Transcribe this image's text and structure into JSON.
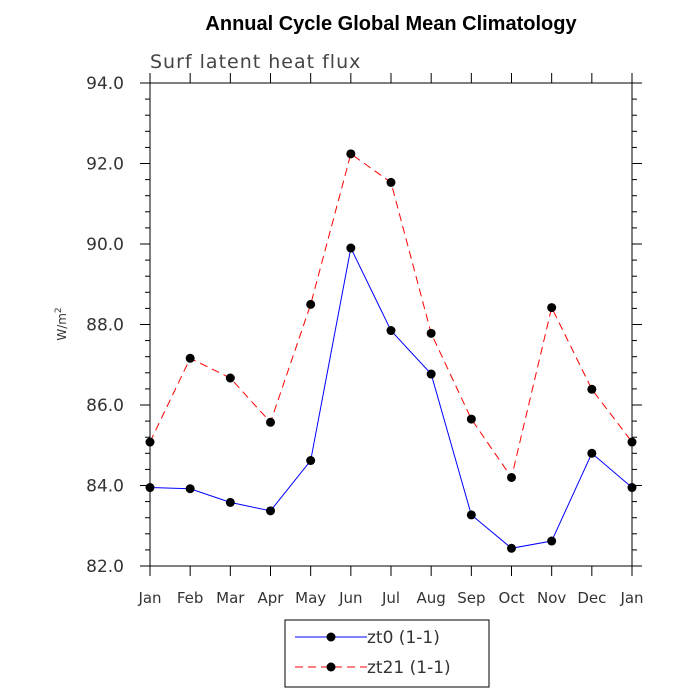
{
  "chart_data": {
    "type": "line",
    "title": "Annual Cycle Global Mean Climatology",
    "subtitle": "Surf latent heat flux",
    "ylabel_base": "W/m",
    "ylabel_sup": "2",
    "xlabel": "",
    "categories": [
      "Jan",
      "Feb",
      "Mar",
      "Apr",
      "May",
      "Jun",
      "Jul",
      "Aug",
      "Sep",
      "Oct",
      "Nov",
      "Dec",
      "Jan"
    ],
    "ylim": [
      82.0,
      94.0
    ],
    "yticks": [
      "82.0",
      "84.0",
      "86.0",
      "88.0",
      "90.0",
      "92.0",
      "94.0"
    ],
    "grid": false,
    "legend_position": "bottom",
    "series": [
      {
        "name": "zt0 (1-1)",
        "color": "#0000ff",
        "dash": "solid",
        "values": [
          83.95,
          83.92,
          83.58,
          83.37,
          84.62,
          89.9,
          87.85,
          86.77,
          83.27,
          82.44,
          82.62,
          84.8,
          83.95
        ]
      },
      {
        "name": "zt21 (1-1)",
        "color": "#ff0000",
        "dash": "dashed",
        "values": [
          85.08,
          87.16,
          86.67,
          85.57,
          88.5,
          92.24,
          91.53,
          87.78,
          85.65,
          84.2,
          88.42,
          86.39,
          85.08
        ]
      }
    ]
  }
}
